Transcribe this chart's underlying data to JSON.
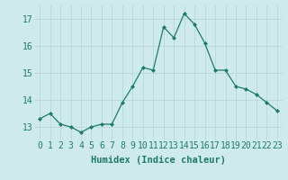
{
  "x": [
    0,
    1,
    2,
    3,
    4,
    5,
    6,
    7,
    8,
    9,
    10,
    11,
    12,
    13,
    14,
    15,
    16,
    17,
    18,
    19,
    20,
    21,
    22,
    23
  ],
  "y": [
    13.3,
    13.5,
    13.1,
    13.0,
    12.8,
    13.0,
    13.1,
    13.1,
    13.9,
    14.5,
    15.2,
    15.1,
    16.7,
    16.3,
    17.2,
    16.8,
    16.1,
    15.1,
    15.1,
    14.5,
    14.4,
    14.2,
    13.9,
    13.6
  ],
  "line_color": "#1e7b6b",
  "marker": "D",
  "marker_size": 2.0,
  "bg_color": "#ceeaea",
  "grid_color": "#b8d8d8",
  "xlabel": "Humidex (Indice chaleur)",
  "xlabel_fontsize": 7.5,
  "tick_fontsize": 7.0,
  "xlim": [
    -0.5,
    23.5
  ],
  "ylim": [
    12.5,
    17.5
  ],
  "yticks": [
    13,
    14,
    15,
    16,
    17
  ],
  "xticks": [
    0,
    1,
    2,
    3,
    4,
    5,
    6,
    7,
    8,
    9,
    10,
    11,
    12,
    13,
    14,
    15,
    16,
    17,
    18,
    19,
    20,
    21,
    22,
    23
  ],
  "xtick_labels": [
    "0",
    "1",
    "2",
    "3",
    "4",
    "5",
    "6",
    "7",
    "8",
    "9",
    "10",
    "11",
    "12",
    "13",
    "14",
    "15",
    "16",
    "17",
    "18",
    "19",
    "20",
    "21",
    "22",
    "23"
  ]
}
